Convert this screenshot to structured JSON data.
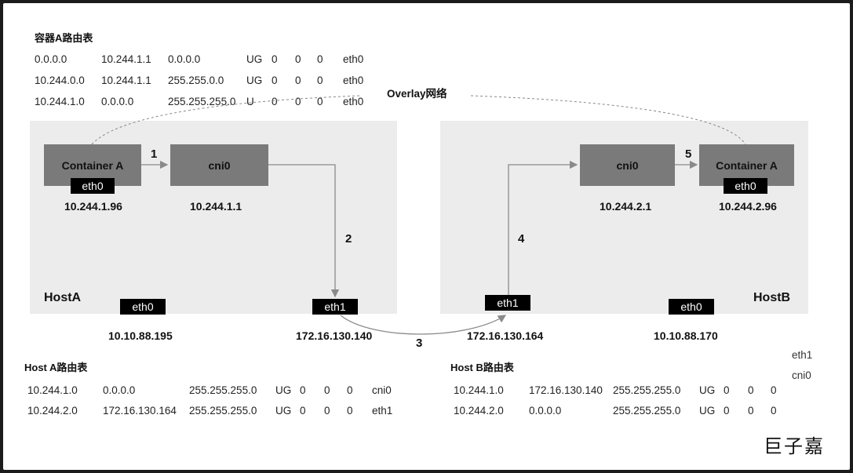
{
  "container_route_table": {
    "title": "容器A路由表",
    "rows": [
      [
        "0.0.0.0",
        "10.244.1.1",
        "0.0.0.0",
        "UG",
        "0",
        "0",
        "0",
        "eth0"
      ],
      [
        "10.244.0.0",
        "10.244.1.1",
        "255.255.0.0",
        "UG",
        "0",
        "0",
        "0",
        "eth0"
      ],
      [
        "10.244.1.0",
        "0.0.0.0",
        "255.255.255.0",
        "U",
        "0",
        "0",
        "0",
        "eth0"
      ]
    ]
  },
  "overlay_label": "Overlay网络",
  "host_a": {
    "name": "HostA",
    "container": "Container A",
    "container_iface": "eth0",
    "container_ip": "10.244.1.96",
    "bridge": "cni0",
    "bridge_ip": "10.244.1.1",
    "eth0": "eth0",
    "eth0_ip": "10.10.88.195",
    "eth1": "eth1",
    "eth1_ip": "172.16.130.140"
  },
  "host_b": {
    "name": "HostB",
    "container": "Container A",
    "container_iface": "eth0",
    "container_ip": "10.244.2.96",
    "bridge": "cni0",
    "bridge_ip": "10.244.2.1",
    "eth0": "eth0",
    "eth0_ip": "10.10.88.170",
    "eth1": "eth1",
    "eth1_ip": "172.16.130.164"
  },
  "steps": [
    "1",
    "2",
    "3",
    "4",
    "5"
  ],
  "host_a_route_table": {
    "title": "Host A路由表",
    "rows": [
      [
        "10.244.1.0",
        "0.0.0.0",
        "255.255.255.0",
        "UG",
        "0",
        "0",
        "0",
        "cni0"
      ],
      [
        "10.244.2.0",
        "172.16.130.164",
        "255.255.255.0",
        "UG",
        "0",
        "0",
        "0",
        "eth1"
      ]
    ]
  },
  "host_b_route_table": {
    "title": "Host B路由表",
    "rows": [
      [
        "10.244.1.0",
        "172.16.130.140",
        "255.255.255.0",
        "UG",
        "0",
        "0",
        "0"
      ],
      [
        "10.244.2.0",
        "0.0.0.0",
        "255.255.255.0",
        "UG",
        "0",
        "0",
        "0"
      ]
    ],
    "side_labels": [
      "eth1",
      "cni0"
    ]
  },
  "signature": "巨子嘉",
  "colors": {
    "host_bg": "#ececec",
    "node": "#7a7a7a",
    "iface": "#000000",
    "wire": "#8a8a8a"
  }
}
